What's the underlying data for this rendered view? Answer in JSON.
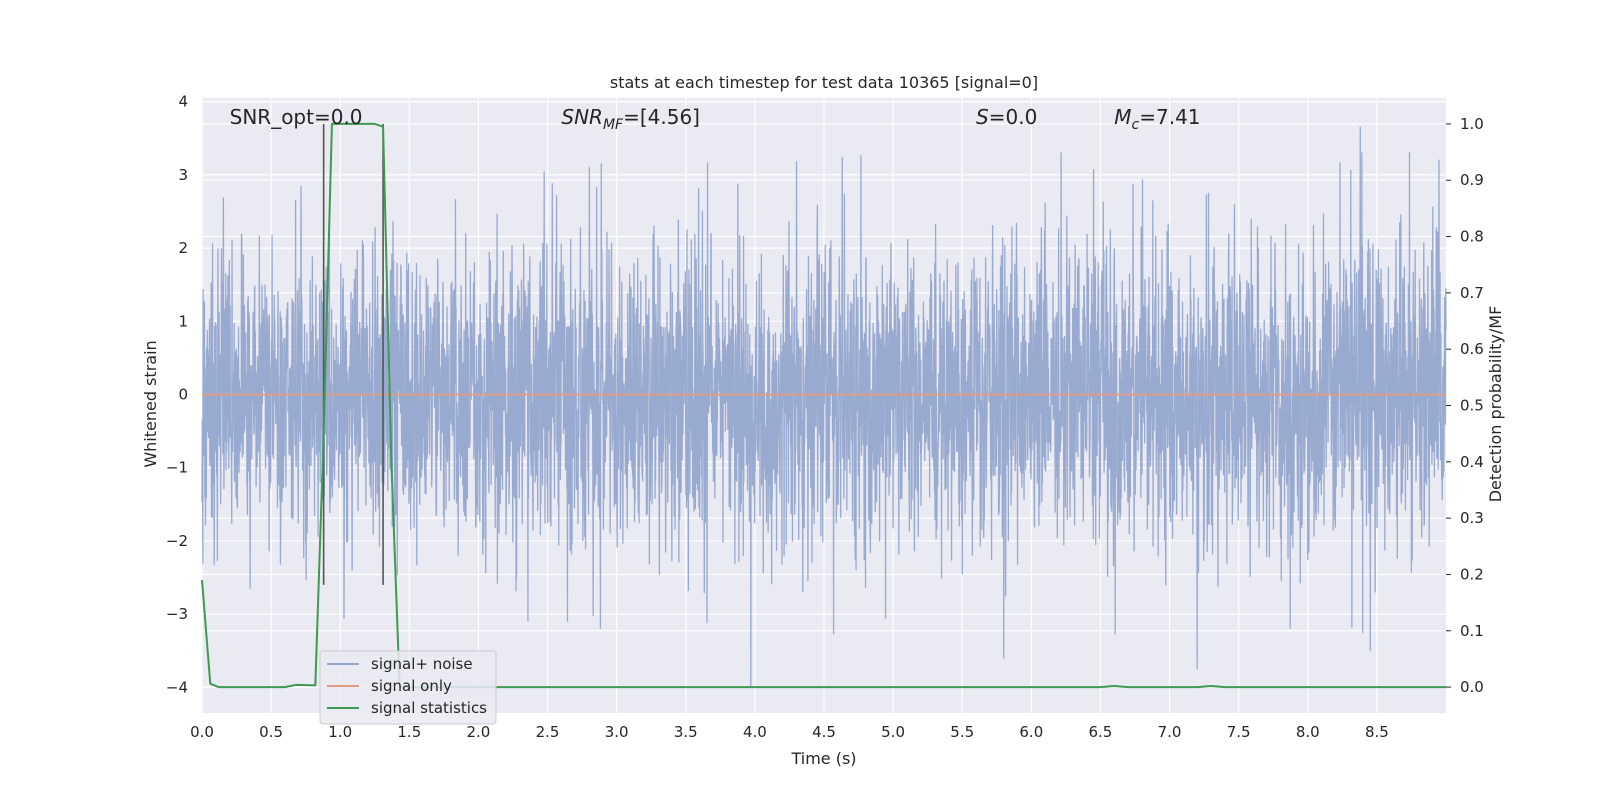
{
  "chart_data": {
    "type": "line",
    "title": "stats at each timestep for test data 10365 [signal=0]",
    "xlabel": "Time (s)",
    "ylabel": "Whitened strain",
    "y2label": "Detection probability/MF",
    "xlim": [
      0,
      9
    ],
    "ylim": [
      -4.35,
      4.05
    ],
    "y2lim": [
      -0.046,
      1.046
    ],
    "xticks": [
      "0.0",
      "0.5",
      "1.0",
      "1.5",
      "2.0",
      "2.5",
      "3.0",
      "3.5",
      "4.0",
      "4.5",
      "5.0",
      "5.5",
      "6.0",
      "6.5",
      "7.0",
      "7.5",
      "8.0",
      "8.5"
    ],
    "yticks": [
      "4",
      "3",
      "2",
      "1",
      "0",
      "−1",
      "−2",
      "−3",
      "−4"
    ],
    "y2ticks": [
      "1.0",
      "0.9",
      "0.8",
      "0.7",
      "0.6",
      "0.5",
      "0.4",
      "0.3",
      "0.2",
      "0.1",
      "0.0"
    ],
    "grid": true,
    "annotations": [
      {
        "text": "SNR_opt=0.0",
        "x": 0.2
      },
      {
        "text": "SNR",
        "sub": "MF",
        "suffix": "=[4.56]",
        "x": 2.6
      },
      {
        "text": "S",
        "suffix": "=0.0",
        "x": 5.6
      },
      {
        "text": "M",
        "sub": "c",
        "suffix": "=7.41",
        "x": 6.6
      }
    ],
    "vlines": [
      0.88,
      1.31
    ],
    "series": [
      {
        "name": "signal+ noise",
        "color": "#93a6cd",
        "description": "whitened noise, ~N(0,1), sampled densely across 0-9 s",
        "seed": 10365,
        "sigma": 1.0,
        "n_points": 4600,
        "extremes": [
          {
            "x": 3.97,
            "y": -4.0
          },
          {
            "x": 8.38,
            "y": 3.65
          },
          {
            "x": 7.2,
            "y": -3.75
          },
          {
            "x": 5.8,
            "y": -3.6
          },
          {
            "x": 8.95,
            "y": 3.2
          }
        ]
      },
      {
        "name": "signal only",
        "color": "#e29c83",
        "x": [
          0,
          9
        ],
        "y": [
          0,
          0
        ]
      },
      {
        "name": "signal statistics",
        "color": "#3e9a52",
        "axis": "right",
        "x": [
          0.0,
          0.06,
          0.12,
          0.2,
          0.4,
          0.6,
          0.68,
          0.82,
          0.88,
          0.94,
          1.0,
          1.25,
          1.31,
          1.37,
          1.43,
          1.5,
          6.5,
          6.6,
          6.7,
          7.2,
          7.3,
          7.4,
          9.0
        ],
        "y": [
          0.19,
          0.006,
          0.0,
          0.0,
          0.0,
          0.0,
          0.004,
          0.003,
          0.45,
          1.0,
          1.0,
          1.0,
          0.995,
          0.4,
          0.0,
          0.0,
          0.0,
          0.002,
          0.0,
          0.0,
          0.002,
          0.0,
          0.0
        ]
      }
    ],
    "legend": {
      "placement": "lower-left",
      "entries": [
        "signal+ noise",
        "signal only",
        "signal statistics"
      ]
    }
  }
}
